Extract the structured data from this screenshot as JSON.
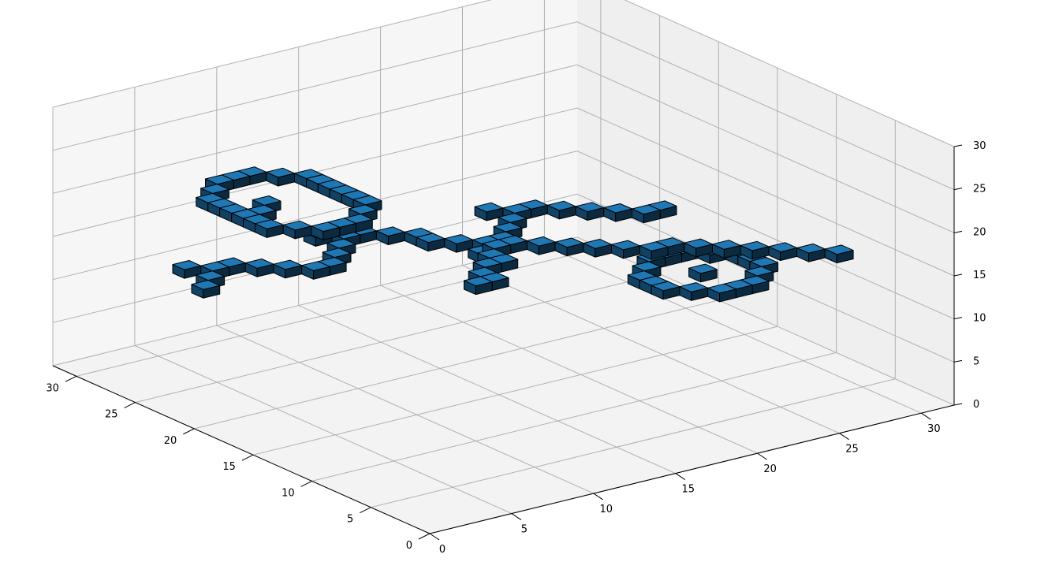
{
  "chart_data": {
    "type": "voxel-3d",
    "title": "",
    "xlabel": "",
    "ylabel": "",
    "zlabel": "",
    "xlim": [
      0,
      32
    ],
    "ylim": [
      0,
      32
    ],
    "zlim": [
      0,
      30
    ],
    "x_ticks": [
      "0",
      "5",
      "10",
      "15",
      "20",
      "25",
      "30"
    ],
    "y_ticks": [
      "0",
      "5",
      "10",
      "15",
      "20",
      "25",
      "30"
    ],
    "z_ticks": [
      "0",
      "5",
      "10",
      "15",
      "20",
      "25",
      "30"
    ],
    "grid": true,
    "colors": {
      "voxel": "#1f77b4",
      "pane_left": "#f6f6f6",
      "pane_right": "#efefef",
      "pane_floor": "#f3f3f3",
      "grid": "#b0b0b0"
    },
    "voxel_groups": [
      {
        "shape": "ring",
        "z": 22,
        "points": [
          [
            18,
            3
          ],
          [
            19,
            3
          ],
          [
            20,
            3
          ],
          [
            21,
            3
          ],
          [
            22,
            3
          ],
          [
            23,
            3
          ],
          [
            17,
            4
          ],
          [
            24,
            4
          ],
          [
            16,
            5
          ],
          [
            25,
            5
          ],
          [
            16,
            6
          ],
          [
            25,
            6
          ],
          [
            16,
            7
          ],
          [
            25,
            7
          ],
          [
            17,
            8
          ],
          [
            24,
            8
          ],
          [
            18,
            9
          ],
          [
            19,
            9
          ],
          [
            20,
            9
          ],
          [
            21,
            9
          ],
          [
            22,
            9
          ],
          [
            23,
            9
          ],
          [
            20,
            4
          ],
          [
            21,
            5
          ]
        ]
      },
      {
        "shape": "snake",
        "z": 13,
        "points": [
          [
            22,
            2
          ],
          [
            23,
            3
          ],
          [
            24,
            4
          ],
          [
            24,
            5
          ],
          [
            23,
            6
          ],
          [
            22,
            7
          ],
          [
            21,
            8
          ],
          [
            21,
            9
          ],
          [
            22,
            10
          ],
          [
            23,
            11
          ],
          [
            24,
            12
          ],
          [
            24,
            13
          ],
          [
            23,
            14
          ],
          [
            22,
            15
          ],
          [
            21,
            15
          ],
          [
            20,
            16
          ],
          [
            19,
            17
          ],
          [
            19,
            18
          ],
          [
            20,
            19
          ],
          [
            21,
            20
          ],
          [
            22,
            21
          ],
          [
            22,
            22
          ],
          [
            21,
            23
          ],
          [
            20,
            24
          ],
          [
            19,
            25
          ],
          [
            18,
            26
          ],
          [
            18,
            27
          ],
          [
            25,
            3
          ],
          [
            25,
            11
          ],
          [
            18,
            16
          ],
          [
            23,
            20
          ]
        ]
      },
      {
        "shape": "arc",
        "z": 17,
        "points": [
          [
            10,
            10
          ],
          [
            11,
            11
          ],
          [
            12,
            12
          ],
          [
            13,
            13
          ],
          [
            14,
            14
          ],
          [
            14,
            15
          ],
          [
            13,
            16
          ],
          [
            12,
            17
          ],
          [
            11,
            18
          ],
          [
            10,
            19
          ],
          [
            9,
            20
          ],
          [
            9,
            21
          ],
          [
            8,
            22
          ],
          [
            7,
            23
          ],
          [
            6,
            24
          ],
          [
            5,
            25
          ],
          [
            4,
            26
          ],
          [
            3,
            27
          ],
          [
            10,
            11
          ],
          [
            12,
            13
          ]
        ]
      },
      {
        "shape": "ring",
        "z": 13,
        "points": [
          [
            7,
            21
          ],
          [
            8,
            20
          ],
          [
            9,
            20
          ],
          [
            10,
            20
          ],
          [
            11,
            21
          ],
          [
            12,
            22
          ],
          [
            12,
            23
          ],
          [
            12,
            24
          ],
          [
            11,
            25
          ],
          [
            10,
            26
          ],
          [
            9,
            26
          ],
          [
            8,
            26
          ],
          [
            7,
            25
          ],
          [
            6,
            24
          ],
          [
            6,
            23
          ],
          [
            6,
            22
          ],
          [
            9,
            23
          ]
        ]
      }
    ]
  }
}
